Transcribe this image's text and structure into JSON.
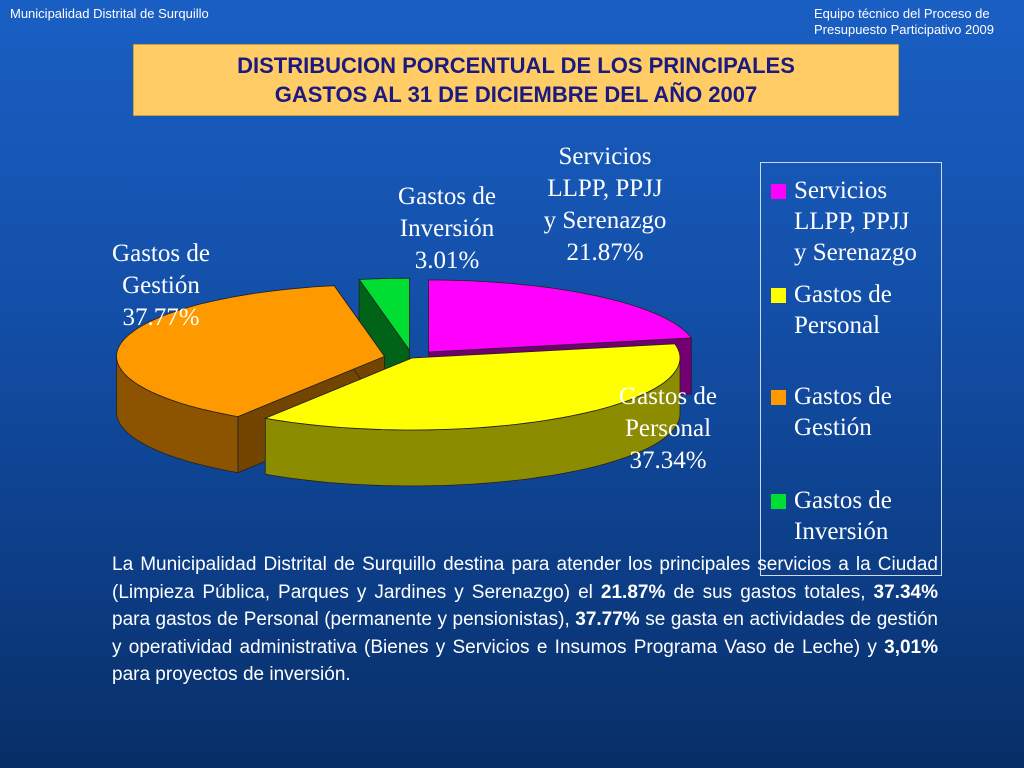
{
  "header": {
    "left": "Municipalidad Distrital de Surquillo",
    "right": "Equipo técnico del Proceso de Presupuesto Participativo 2009"
  },
  "title": {
    "line1": "DISTRIBUCION PORCENTUAL DE LOS PRINCIPALES",
    "line2": "GASTOS  AL 31 DE DICIEMBRE DEL AÑO 2007"
  },
  "chart_data": {
    "type": "pie",
    "title": "DISTRIBUCION PORCENTUAL DE LOS PRINCIPALES GASTOS  AL 31 DE DICIEMBRE DEL AÑO 2007",
    "unit": "%",
    "categories": [
      "Servicios LLPP, PPJJ y Serenazgo",
      "Gastos de Personal",
      "Gastos de Gestión",
      "Gastos de Inversión"
    ],
    "values": [
      21.87,
      37.34,
      37.77,
      3.01
    ],
    "colors": [
      "#ff00ff",
      "#ffff00",
      "#ff9900",
      "#00dd33"
    ],
    "labels": [
      {
        "lines": [
          "Servicios",
          "LLPP, PPJJ",
          "y Serenazgo",
          "21.87%"
        ]
      },
      {
        "lines": [
          "Gastos de",
          "Personal",
          "37.34%"
        ]
      },
      {
        "lines": [
          "Gastos de",
          "Gestión",
          "37.77%"
        ]
      },
      {
        "lines": [
          "Gastos de",
          "Inversión",
          "3.01%"
        ]
      }
    ],
    "legend": {
      "position": "right",
      "entries": [
        {
          "lines": [
            "Servicios",
            "LLPP, PPJJ",
            "y Serenazgo"
          ]
        },
        {
          "lines": [
            "Gastos de",
            "Personal"
          ]
        },
        {
          "lines": [
            "Gastos de",
            "Gestión"
          ]
        },
        {
          "lines": [
            "Gastos de",
            "Inversión"
          ]
        }
      ]
    }
  },
  "paragraph": [
    {
      "text": "La Municipalidad Distrital de Surquillo destina para atender los principales servicios a la Ciudad (Limpieza Pública, Parques y Jardines y Serenazgo) el ",
      "bold": false
    },
    {
      "text": "21.87%",
      "bold": true
    },
    {
      "text": " de sus gastos totales, ",
      "bold": false
    },
    {
      "text": "37.34%",
      "bold": true
    },
    {
      "text": " para gastos de Personal (permanente y pensionistas), ",
      "bold": false
    },
    {
      "text": "37.77%",
      "bold": true
    },
    {
      "text": " se gasta en actividades de gestión y operatividad administrativa (Bienes y Servicios e Insumos Programa Vaso de Leche) y  ",
      "bold": false
    },
    {
      "text": "3,01%",
      "bold": true
    },
    {
      "text": " para proyectos de inversión.",
      "bold": false
    }
  ]
}
